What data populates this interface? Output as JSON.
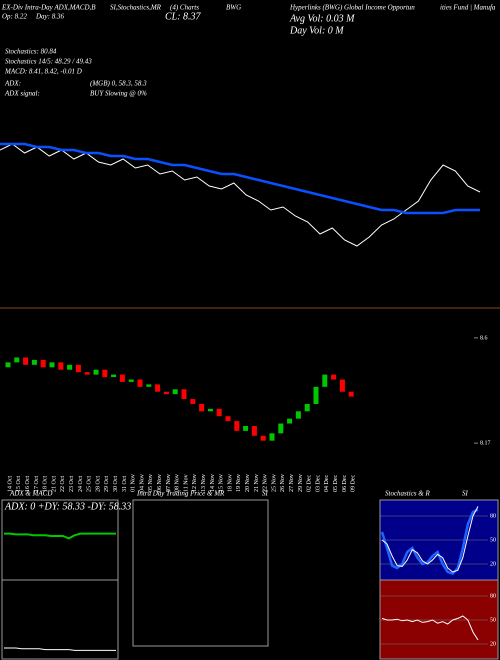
{
  "header": {
    "l1a": "EX-Div Intra-Day ADX,MACD,B",
    "l1b": "SI,Stochastics,MR",
    "l1c": "(4) Charts",
    "l1d": "BWG",
    "l1e": "Hyperlinks (BWG) Global Income Opportun",
    "l1f": "ities Fund | Manufa",
    "op": "Op: 8.22",
    "day": "Day: 8.36",
    "cl": "CL: 8.37",
    "avgvol": "Avg Vol: 0.03 M",
    "dayvol": "Day Vol: 0 M",
    "stoch": "Stochastics: 80.84",
    "stoch145": "Stochastics 14/5: 48.29 / 49.43",
    "macd": "MACD: 8.41, 8.42, -0.01 D",
    "adx": "ADX:",
    "adxval": "(MGB) 0, 58.3, 58.3",
    "adxsig": "ADX signal:",
    "adxsigval": "BUY Slowing @ 0%"
  },
  "chart_data": [
    {
      "type": "line",
      "ylim": [
        7.9,
        8.8
      ],
      "series": [
        {
          "color": "#ffffff",
          "values": [
            8.5,
            8.52,
            8.49,
            8.51,
            8.48,
            8.5,
            8.47,
            8.49,
            8.46,
            8.45,
            8.47,
            8.44,
            8.45,
            8.42,
            8.43,
            8.4,
            8.41,
            8.38,
            8.37,
            8.39,
            8.35,
            8.33,
            8.3,
            8.31,
            8.28,
            8.26,
            8.22,
            8.24,
            8.2,
            8.18,
            8.21,
            8.25,
            8.27,
            8.3,
            8.33,
            8.4,
            8.45,
            8.43,
            8.38,
            8.36
          ]
        },
        {
          "color": "#0a50ff",
          "values": [
            8.52,
            8.52,
            8.52,
            8.51,
            8.51,
            8.5,
            8.5,
            8.49,
            8.49,
            8.48,
            8.48,
            8.47,
            8.47,
            8.46,
            8.45,
            8.45,
            8.44,
            8.43,
            8.42,
            8.42,
            8.41,
            8.4,
            8.39,
            8.38,
            8.37,
            8.36,
            8.35,
            8.34,
            8.33,
            8.32,
            8.31,
            8.3,
            8.3,
            8.29,
            8.29,
            8.29,
            8.29,
            8.3,
            8.3,
            8.3
          ]
        }
      ]
    },
    {
      "type": "candlestick",
      "ylim": [
        8.15,
        8.62
      ],
      "yticks": [
        8.6,
        8.17
      ],
      "up_color": "#00c800",
      "down_color": "#ff0000",
      "categories": [
        "14 Oct",
        "15 Oct",
        "16 Oct",
        "17 Oct",
        "18 Oct",
        "21 Oct",
        "22 Oct",
        "23 Oct",
        "24 Oct",
        "25 Oct",
        "28 Oct",
        "29 Oct",
        "30 Oct",
        "31 Oct",
        "01 Nov",
        "04 Nov",
        "05 Nov",
        "06 Nov",
        "07 Nov",
        "08 Nov",
        "11 Nov",
        "12 Nov",
        "13 Nov",
        "14 Nov",
        "15 Nov",
        "18 Nov",
        "19 Nov",
        "20 Nov",
        "21 Nov",
        "22 Nov",
        "25 Nov",
        "26 Nov",
        "27 Nov",
        "29 Nov",
        "02 Dec",
        "03 Dec",
        "04 Dec",
        "05 Dec",
        "06 Dec",
        "09 Dec"
      ],
      "open": [
        8.48,
        8.5,
        8.52,
        8.49,
        8.51,
        8.48,
        8.5,
        8.47,
        8.49,
        8.46,
        8.45,
        8.47,
        8.44,
        8.45,
        8.42,
        8.43,
        8.4,
        8.41,
        8.38,
        8.37,
        8.39,
        8.35,
        8.33,
        8.3,
        8.31,
        8.28,
        8.26,
        8.22,
        8.24,
        8.2,
        8.18,
        8.21,
        8.25,
        8.27,
        8.3,
        8.33,
        8.4,
        8.45,
        8.43,
        8.38
      ],
      "close": [
        8.5,
        8.52,
        8.49,
        8.51,
        8.48,
        8.5,
        8.47,
        8.49,
        8.46,
        8.45,
        8.47,
        8.44,
        8.45,
        8.42,
        8.43,
        8.4,
        8.41,
        8.38,
        8.37,
        8.39,
        8.35,
        8.33,
        8.3,
        8.31,
        8.28,
        8.26,
        8.22,
        8.24,
        8.2,
        8.18,
        8.21,
        8.25,
        8.27,
        8.3,
        8.33,
        8.4,
        8.45,
        8.43,
        8.38,
        8.36
      ]
    },
    {
      "type": "adx",
      "title": "ADX & MACD",
      "label": "ADX: 0 +DY: 58.33 -DY: 58.33",
      "ylim": [
        0,
        100
      ],
      "adx": {
        "color": "#00c800",
        "values": [
          58,
          58,
          57,
          57,
          57,
          56,
          56,
          56,
          55,
          55,
          55,
          52,
          56,
          58,
          58,
          58,
          58,
          58,
          58,
          58
        ]
      },
      "macd_line": {
        "color": "#ffffff",
        "values": [
          15,
          15,
          15,
          14,
          14,
          14,
          14,
          13,
          13,
          13,
          13,
          13,
          12,
          12,
          12,
          12,
          12,
          12,
          12,
          12
        ]
      }
    },
    {
      "type": "intraday",
      "title": "Intra Day Trading Price & MR",
      "title2": "SI"
    },
    {
      "type": "stochastics",
      "title": "Stochastics & R",
      "title2": "SI",
      "ylim": [
        0,
        100
      ],
      "yticks": [
        20,
        50,
        80
      ],
      "series": [
        {
          "color": "#1e64ff",
          "values": [
            60,
            40,
            18,
            15,
            20,
            35,
            40,
            28,
            20,
            22,
            30,
            35,
            20,
            10,
            8,
            15,
            40,
            70,
            85,
            88
          ]
        },
        {
          "color": "#ffffff",
          "values": [
            50,
            45,
            30,
            18,
            17,
            25,
            38,
            34,
            24,
            20,
            25,
            32,
            28,
            15,
            10,
            12,
            28,
            55,
            80,
            92
          ]
        }
      ],
      "rsi": {
        "color": "#ffffff",
        "values": [
          52,
          50,
          50,
          51,
          49,
          50,
          48,
          50,
          47,
          48,
          50,
          46,
          48,
          45,
          50,
          52,
          55,
          50,
          35,
          25
        ]
      }
    }
  ]
}
